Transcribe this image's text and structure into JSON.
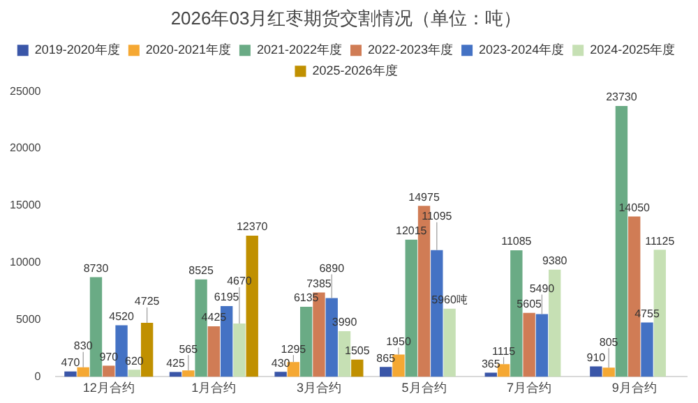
{
  "chart_data": {
    "type": "bar",
    "title": "2026年03月红枣期货交割情况（单位：吨）",
    "categories": [
      "12月合约",
      "1月合约",
      "3月合约",
      "5月合约",
      "7月合约",
      "9月合约"
    ],
    "series": [
      {
        "name": "2019-2020年度",
        "color": "#3a56a8",
        "values": [
          470,
          425,
          430,
          865,
          365,
          910
        ],
        "value_labels": [
          "470",
          "425",
          "430",
          "865",
          "365",
          "910"
        ]
      },
      {
        "name": "2020-2021年度",
        "color": "#f5a833",
        "values": [
          830,
          565,
          1295,
          1950,
          1115,
          805
        ],
        "value_labels": [
          "830",
          "565",
          "1295",
          "1950",
          "1115",
          "805"
        ]
      },
      {
        "name": "2021-2022年度",
        "color": "#6aab85",
        "values": [
          8730,
          8525,
          6135,
          12015,
          11085,
          23730
        ],
        "value_labels": [
          "8730",
          "8525",
          "6135",
          "12015",
          "11085",
          "23730"
        ]
      },
      {
        "name": "2022-2023年度",
        "color": "#d07c55",
        "values": [
          970,
          4425,
          7385,
          14975,
          5605,
          14050
        ],
        "value_labels": [
          "970",
          "4425",
          "7385",
          "14975",
          "5605",
          "14050"
        ]
      },
      {
        "name": "2023-2024年度",
        "color": "#4472c4",
        "values": [
          4520,
          6195,
          6890,
          11095,
          5490,
          4755
        ],
        "value_labels": [
          "4520",
          "6195",
          "6890",
          "11095",
          "5490",
          "4755"
        ]
      },
      {
        "name": "2024-2025年度",
        "color": "#c6e0b4",
        "values": [
          620,
          4670,
          3990,
          5960,
          9380,
          11125
        ],
        "value_labels": [
          "620",
          "4670",
          "3990",
          "5960吨",
          "9380",
          "11125"
        ]
      },
      {
        "name": "2025-2026年度",
        "color": "#c09000",
        "values": [
          4725,
          12370,
          1505,
          null,
          null,
          null
        ],
        "value_labels": [
          "4725",
          "12370",
          "1505",
          null,
          null,
          null
        ]
      }
    ],
    "ylim": [
      0,
      25000
    ],
    "yticks": [
      0,
      5000,
      10000,
      15000,
      20000,
      25000
    ],
    "grid": false,
    "legend": "top"
  }
}
